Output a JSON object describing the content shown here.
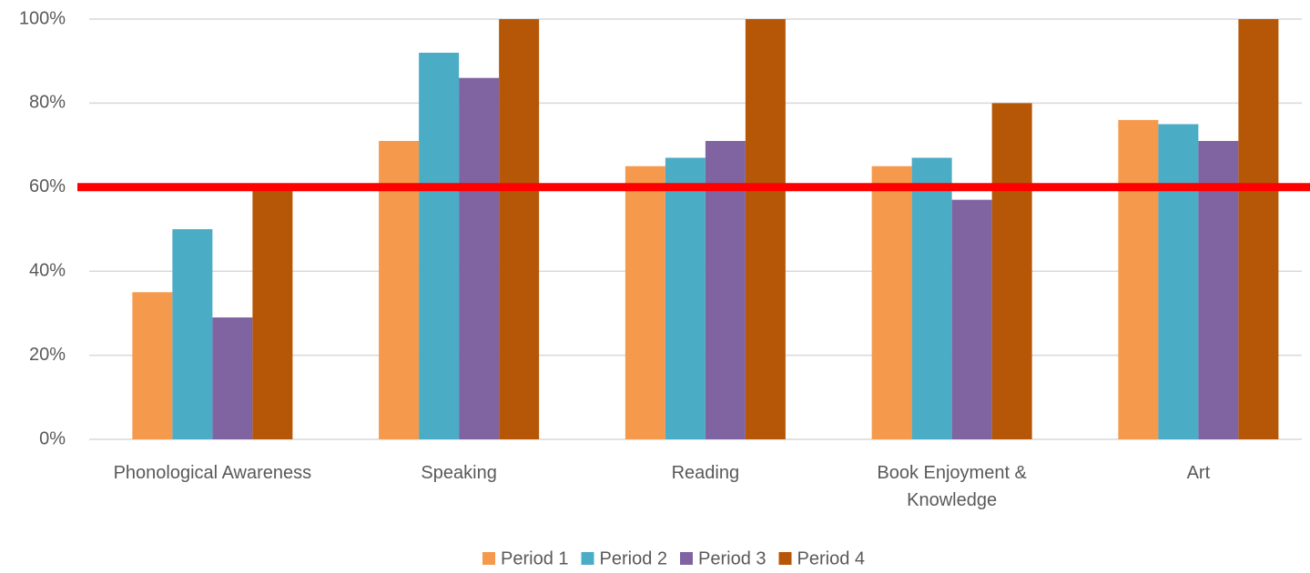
{
  "chart_data": {
    "type": "bar",
    "categories": [
      "Phonological Awareness",
      "Speaking",
      "Reading",
      "Book Enjoyment & Knowledge",
      "Art"
    ],
    "series": [
      {
        "name": "Period 1",
        "color": "#f59a4c",
        "values": [
          35,
          71,
          65,
          65,
          76
        ]
      },
      {
        "name": "Period 2",
        "color": "#4bacc6",
        "values": [
          50,
          92,
          67,
          67,
          75
        ]
      },
      {
        "name": "Period 3",
        "color": "#8064a2",
        "values": [
          29,
          86,
          71,
          57,
          71
        ]
      },
      {
        "name": "Period 4",
        "color": "#b65708",
        "values": [
          60,
          100,
          100,
          80,
          100
        ]
      }
    ],
    "ylim": [
      0,
      100
    ],
    "yticks": [
      {
        "value": 0,
        "label": "0%"
      },
      {
        "value": 20,
        "label": "20%"
      },
      {
        "value": 40,
        "label": "40%"
      },
      {
        "value": 60,
        "label": "60%"
      },
      {
        "value": 80,
        "label": "80%"
      },
      {
        "value": 100,
        "label": "100%"
      }
    ],
    "grid": true,
    "reference_line": {
      "value": 60,
      "color": "#ff0000"
    },
    "legend": "bottom"
  }
}
